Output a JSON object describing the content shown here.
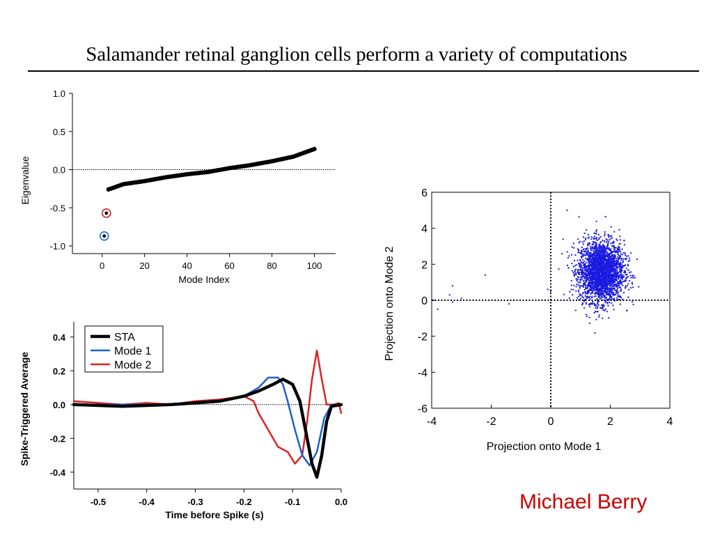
{
  "slide": {
    "title": "Salamander retinal ganglion cells perform a variety of computations",
    "author": "Michael Berry",
    "author_color": "#cc0000"
  },
  "chart_data": [
    {
      "id": "eigenvalue",
      "type": "scatter",
      "xlabel": "Mode Index",
      "ylabel": "Eigenvalue",
      "xlim": [
        -14,
        110
      ],
      "ylim": [
        -1.1,
        1.0
      ],
      "xticks": [
        0,
        20,
        40,
        60,
        80,
        100
      ],
      "yticks": [
        -1.0,
        -0.5,
        0.0,
        0.5,
        1.0
      ],
      "xtick_labels": [
        "0",
        "20",
        "40",
        "60",
        "80",
        "100"
      ],
      "ytick_labels": [
        "-1.0",
        "-0.5",
        "0.0",
        "0.5",
        "1.0"
      ],
      "zero_line": true,
      "grid": false,
      "color": "#000000",
      "highlighted": [
        {
          "index": 1,
          "value": -0.87,
          "ring_color": "#1a6fd8"
        },
        {
          "index": 2,
          "value": -0.57,
          "ring_color": "#cc2222"
        }
      ],
      "curve": {
        "x_start": 3,
        "x_end": 100,
        "step": 1,
        "knots": [
          [
            3,
            -0.26
          ],
          [
            10,
            -0.19
          ],
          [
            20,
            -0.15
          ],
          [
            30,
            -0.1
          ],
          [
            40,
            -0.06
          ],
          [
            50,
            -0.03
          ],
          [
            60,
            0.02
          ],
          [
            70,
            0.06
          ],
          [
            80,
            0.11
          ],
          [
            90,
            0.17
          ],
          [
            100,
            0.27
          ]
        ]
      }
    },
    {
      "id": "sta",
      "type": "line",
      "xlabel": "Time before Spike (s)",
      "ylabel": "Spike-Triggered Average",
      "xlim": [
        -0.55,
        0.0
      ],
      "ylim": [
        -0.5,
        0.49
      ],
      "xticks": [
        -0.5,
        -0.4,
        -0.3,
        -0.2,
        -0.1,
        0.0
      ],
      "yticks": [
        -0.4,
        -0.2,
        0.0,
        0.2,
        0.4
      ],
      "xtick_labels": [
        "-0.5",
        "-0.4",
        "-0.3",
        "-0.2",
        "-0.1",
        "0.0"
      ],
      "ytick_labels": [
        "-0.4",
        "-0.2",
        "0.0",
        "0.2",
        "0.4"
      ],
      "zero_line": true,
      "grid": false,
      "legend": "top-left",
      "series": [
        {
          "name": "STA",
          "color": "#000000",
          "width": 4.5,
          "points": [
            [
              -0.55,
              0.0
            ],
            [
              -0.45,
              -0.01
            ],
            [
              -0.35,
              0.0
            ],
            [
              -0.25,
              0.02
            ],
            [
              -0.2,
              0.05
            ],
            [
              -0.17,
              0.08
            ],
            [
              -0.14,
              0.12
            ],
            [
              -0.12,
              0.15
            ],
            [
              -0.1,
              0.12
            ],
            [
              -0.085,
              0.02
            ],
            [
              -0.07,
              -0.2
            ],
            [
              -0.06,
              -0.35
            ],
            [
              -0.05,
              -0.43
            ],
            [
              -0.04,
              -0.3
            ],
            [
              -0.03,
              -0.1
            ],
            [
              -0.02,
              -0.01
            ],
            [
              0.0,
              0.0
            ]
          ]
        },
        {
          "name": "Mode 1",
          "color": "#1a5fd0",
          "width": 2.5,
          "points": [
            [
              -0.55,
              0.0
            ],
            [
              -0.45,
              0.0
            ],
            [
              -0.35,
              0.0
            ],
            [
              -0.25,
              0.02
            ],
            [
              -0.2,
              0.05
            ],
            [
              -0.17,
              0.1
            ],
            [
              -0.15,
              0.16
            ],
            [
              -0.13,
              0.16
            ],
            [
              -0.12,
              0.12
            ],
            [
              -0.11,
              0.02
            ],
            [
              -0.095,
              -0.15
            ],
            [
              -0.08,
              -0.3
            ],
            [
              -0.065,
              -0.36
            ],
            [
              -0.05,
              -0.28
            ],
            [
              -0.035,
              -0.08
            ],
            [
              -0.02,
              0.0
            ],
            [
              0.0,
              0.0
            ]
          ]
        },
        {
          "name": "Mode 2",
          "color": "#dd2222",
          "width": 2.5,
          "points": [
            [
              -0.55,
              0.02
            ],
            [
              -0.45,
              0.0
            ],
            [
              -0.4,
              0.01
            ],
            [
              -0.35,
              0.0
            ],
            [
              -0.3,
              0.02
            ],
            [
              -0.25,
              0.03
            ],
            [
              -0.2,
              0.05
            ],
            [
              -0.18,
              0.02
            ],
            [
              -0.17,
              -0.05
            ],
            [
              -0.15,
              -0.15
            ],
            [
              -0.13,
              -0.25
            ],
            [
              -0.11,
              -0.28
            ],
            [
              -0.095,
              -0.35
            ],
            [
              -0.08,
              -0.3
            ],
            [
              -0.07,
              -0.1
            ],
            [
              -0.06,
              0.15
            ],
            [
              -0.05,
              0.32
            ],
            [
              -0.04,
              0.15
            ],
            [
              -0.03,
              0.0
            ],
            [
              -0.015,
              0.0
            ],
            [
              -0.005,
              0.01
            ],
            [
              0.0,
              -0.05
            ]
          ]
        }
      ]
    },
    {
      "id": "projection",
      "type": "scatter",
      "xlabel": "Projection onto Mode 1",
      "ylabel": "Projection onto Mode 2",
      "xlim": [
        -4,
        4
      ],
      "ylim": [
        -6,
        6
      ],
      "xticks": [
        -4,
        -2,
        0,
        2,
        4
      ],
      "yticks": [
        -6,
        -4,
        -2,
        0,
        2,
        4,
        6
      ],
      "xtick_labels": [
        "-4",
        "-2",
        "0",
        "2",
        "4"
      ],
      "ytick_labels": [
        "-6",
        "-4",
        "-2",
        "0",
        "2",
        "4",
        "6"
      ],
      "zero_lines": true,
      "grid": false,
      "color": "#1a1ae0",
      "cluster": {
        "center": [
          1.7,
          1.6
        ],
        "spread": [
          0.38,
          0.85
        ],
        "count": 2600
      },
      "outliers": [
        [
          -3.95,
          0.0
        ],
        [
          -3.8,
          -0.5
        ],
        [
          -3.4,
          0.3
        ],
        [
          -3.3,
          0.8
        ],
        [
          -3.3,
          -0.1
        ],
        [
          -3.0,
          0.1
        ],
        [
          -2.2,
          1.4
        ],
        [
          -1.4,
          -0.2
        ],
        [
          -0.1,
          0.6
        ],
        [
          0.0,
          0.5
        ],
        [
          0.55,
          5.0
        ],
        [
          1.2,
          3.9
        ]
      ]
    }
  ]
}
